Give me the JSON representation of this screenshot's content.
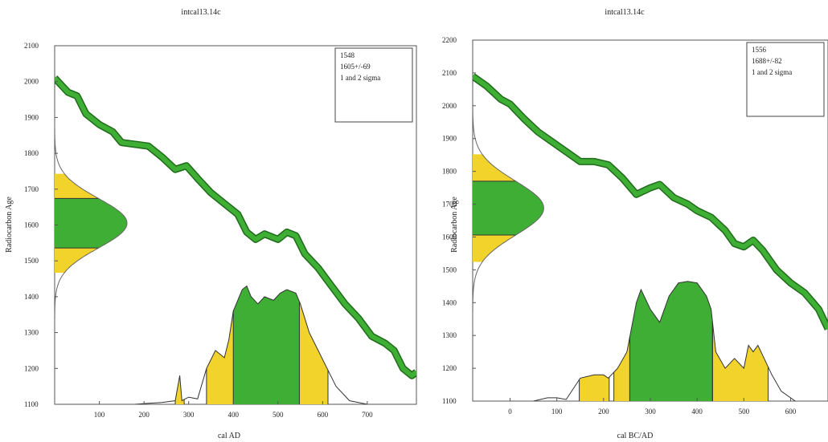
{
  "chart_data": [
    {
      "type": "area",
      "title": "intcal13.14c",
      "xlabel": "cal AD",
      "ylabel": "Radiocarbon Age",
      "xlim": [
        0,
        810
      ],
      "ylim": [
        1100,
        2100
      ],
      "xticks": [
        100,
        200,
        300,
        400,
        500,
        600,
        700
      ],
      "yticks": [
        1100,
        1200,
        1300,
        1400,
        1500,
        1600,
        1700,
        1800,
        1900,
        2000,
        2100
      ],
      "legend": {
        "sample_id": "1548",
        "age": "1605+/-69",
        "note": "1 and 2 sigma"
      },
      "calibration_curve": [
        [
          0,
          2010
        ],
        [
          30,
          1970
        ],
        [
          50,
          1960
        ],
        [
          70,
          1910
        ],
        [
          100,
          1880
        ],
        [
          130,
          1860
        ],
        [
          150,
          1830
        ],
        [
          180,
          1825
        ],
        [
          210,
          1820
        ],
        [
          240,
          1790
        ],
        [
          270,
          1755
        ],
        [
          295,
          1765
        ],
        [
          320,
          1730
        ],
        [
          350,
          1690
        ],
        [
          380,
          1660
        ],
        [
          410,
          1630
        ],
        [
          430,
          1580
        ],
        [
          450,
          1560
        ],
        [
          470,
          1575
        ],
        [
          500,
          1560
        ],
        [
          520,
          1580
        ],
        [
          540,
          1570
        ],
        [
          560,
          1520
        ],
        [
          590,
          1480
        ],
        [
          620,
          1430
        ],
        [
          650,
          1380
        ],
        [
          680,
          1340
        ],
        [
          710,
          1290
        ],
        [
          740,
          1270
        ],
        [
          760,
          1250
        ],
        [
          780,
          1200
        ],
        [
          800,
          1180
        ],
        [
          810,
          1190
        ]
      ],
      "radiocarbon_density": {
        "mean": 1605,
        "sigma": 69,
        "one_sigma": [
          1536,
          1674
        ],
        "two_sigma": [
          1467,
          1743
        ]
      },
      "calibrated_density": [
        [
          180,
          1100
        ],
        [
          210,
          1103
        ],
        [
          240,
          1105
        ],
        [
          270,
          1110
        ],
        [
          280,
          1180
        ],
        [
          285,
          1110
        ],
        [
          300,
          1120
        ],
        [
          320,
          1115
        ],
        [
          340,
          1200
        ],
        [
          360,
          1250
        ],
        [
          380,
          1230
        ],
        [
          390,
          1280
        ],
        [
          400,
          1360
        ],
        [
          420,
          1420
        ],
        [
          430,
          1430
        ],
        [
          440,
          1400
        ],
        [
          455,
          1380
        ],
        [
          470,
          1400
        ],
        [
          490,
          1390
        ],
        [
          505,
          1410
        ],
        [
          520,
          1420
        ],
        [
          540,
          1410
        ],
        [
          550,
          1380
        ],
        [
          570,
          1300
        ],
        [
          590,
          1250
        ],
        [
          610,
          1200
        ],
        [
          630,
          1150
        ],
        [
          660,
          1110
        ],
        [
          700,
          1100
        ]
      ],
      "one_sigma_ranges": [
        [
          400,
          548
        ]
      ],
      "two_sigma_ranges": [
        [
          270,
          290
        ],
        [
          340,
          612
        ]
      ]
    },
    {
      "type": "area",
      "title": "intcal13.14c",
      "xlabel": "cal BC/AD",
      "ylabel": "Radiocarbon Age",
      "xlim": [
        -80,
        680
      ],
      "ylim": [
        1100,
        2200
      ],
      "xticks": [
        0,
        100,
        200,
        300,
        400,
        500,
        600
      ],
      "yticks": [
        1100,
        1200,
        1300,
        1400,
        1500,
        1600,
        1700,
        1800,
        1900,
        2000,
        2100,
        2200
      ],
      "legend": {
        "sample_id": "1556",
        "age": "1688+/-82",
        "note": "1 and 2 sigma"
      },
      "calibration_curve": [
        [
          -80,
          2090
        ],
        [
          -50,
          2060
        ],
        [
          -20,
          2020
        ],
        [
          0,
          2005
        ],
        [
          30,
          1960
        ],
        [
          60,
          1920
        ],
        [
          90,
          1890
        ],
        [
          120,
          1860
        ],
        [
          150,
          1830
        ],
        [
          180,
          1830
        ],
        [
          210,
          1820
        ],
        [
          240,
          1780
        ],
        [
          270,
          1730
        ],
        [
          300,
          1750
        ],
        [
          320,
          1760
        ],
        [
          350,
          1720
        ],
        [
          380,
          1700
        ],
        [
          400,
          1680
        ],
        [
          430,
          1660
        ],
        [
          460,
          1620
        ],
        [
          480,
          1580
        ],
        [
          500,
          1570
        ],
        [
          520,
          1590
        ],
        [
          540,
          1560
        ],
        [
          570,
          1500
        ],
        [
          600,
          1460
        ],
        [
          630,
          1430
        ],
        [
          660,
          1380
        ],
        [
          680,
          1320
        ]
      ],
      "radiocarbon_density": {
        "mean": 1688,
        "sigma": 82,
        "one_sigma": [
          1606,
          1770
        ],
        "two_sigma": [
          1524,
          1852
        ]
      },
      "calibrated_density": [
        [
          50,
          1100
        ],
        [
          80,
          1110
        ],
        [
          100,
          1110
        ],
        [
          120,
          1105
        ],
        [
          150,
          1170
        ],
        [
          180,
          1180
        ],
        [
          200,
          1180
        ],
        [
          210,
          1170
        ],
        [
          230,
          1200
        ],
        [
          250,
          1250
        ],
        [
          270,
          1400
        ],
        [
          280,
          1440
        ],
        [
          300,
          1380
        ],
        [
          320,
          1340
        ],
        [
          340,
          1420
        ],
        [
          360,
          1460
        ],
        [
          380,
          1465
        ],
        [
          400,
          1460
        ],
        [
          420,
          1420
        ],
        [
          430,
          1380
        ],
        [
          440,
          1250
        ],
        [
          460,
          1200
        ],
        [
          480,
          1230
        ],
        [
          500,
          1200
        ],
        [
          510,
          1270
        ],
        [
          520,
          1250
        ],
        [
          530,
          1270
        ],
        [
          540,
          1240
        ],
        [
          560,
          1180
        ],
        [
          580,
          1130
        ],
        [
          610,
          1100
        ]
      ],
      "one_sigma_ranges": [
        [
          256,
          433
        ]
      ],
      "two_sigma_ranges": [
        [
          148,
          212
        ],
        [
          222,
          256
        ],
        [
          433,
          552
        ]
      ]
    }
  ]
}
